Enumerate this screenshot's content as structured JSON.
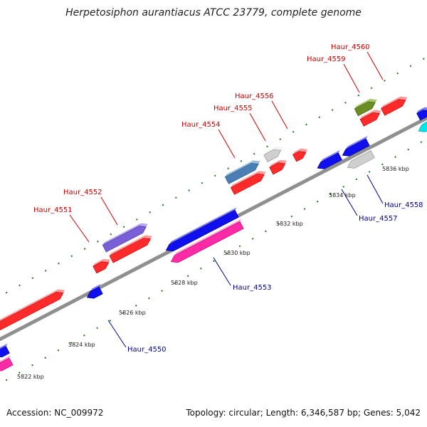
{
  "title": "Herpetosiphon aurantiacus ATCC 23779, complete genome",
  "footer": {
    "accession": "Accession: NC_009972",
    "summary": "Topology: circular; Length: 6,346,587 bp; Genes: 5,042"
  },
  "colors": {
    "backbone": "#8f8f8f",
    "tick": "#1a7a1a",
    "label_top": "#cc0000",
    "label_bottom": "#00008b",
    "kbp_text": "#222222"
  },
  "scale_labels": [
    "5822 kbp",
    "5824 kbp",
    "5826 kbp",
    "5828 kbp",
    "5830 kbp",
    "5832 kbp",
    "5834 kbp",
    "5836 kbp"
  ],
  "gene_labels_top": [
    "Haur_4551",
    "Haur_4552",
    "Haur_4554",
    "Haur_4555",
    "Haur_4556",
    "Haur_4559",
    "Haur_4560"
  ],
  "gene_labels_bottom": [
    "Haur_4550",
    "Haur_4553",
    "Haur_4557",
    "Haur_4558"
  ],
  "gene_colors": [
    "red",
    "blue",
    "magenta",
    "slate blue",
    "steel blue",
    "light gray",
    "olive green",
    "cyan"
  ]
}
